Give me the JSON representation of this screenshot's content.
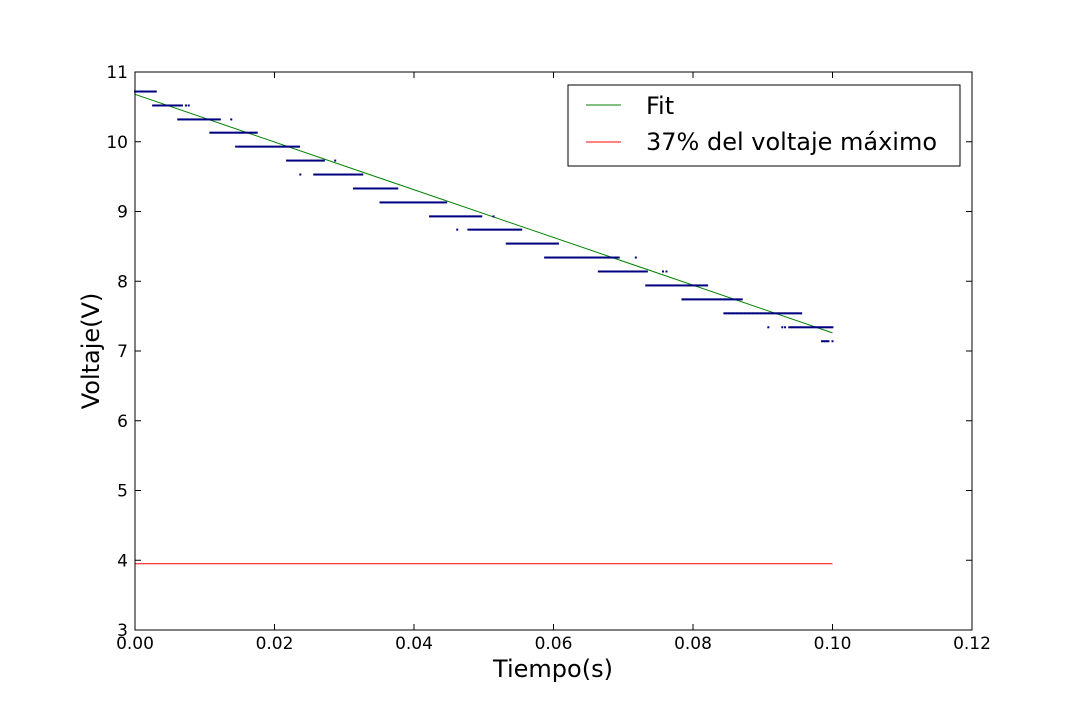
{
  "chart_data": {
    "type": "scatter",
    "title": "",
    "xlabel": "Tiempo(s)",
    "ylabel": "Voltaje(V)",
    "xlim": [
      0.0,
      0.12
    ],
    "ylim": [
      3,
      11
    ],
    "xticks": [
      "0.00",
      "0.02",
      "0.04",
      "0.06",
      "0.08",
      "0.10",
      "0.12"
    ],
    "yticks": [
      "3",
      "4",
      "5",
      "6",
      "7",
      "8",
      "9",
      "10",
      "11"
    ],
    "grid": false,
    "legend_position": "top-right",
    "legend": [
      "Fit",
      "37% del voltaje máximo"
    ],
    "series": [
      {
        "kind": "line",
        "name": "Fit",
        "color": "#008000",
        "x": [
          0.0,
          0.1
        ],
        "y": [
          10.68,
          7.26
        ]
      },
      {
        "kind": "line",
        "name": "37% del voltaje máximo",
        "color": "#ff0000",
        "x": [
          0.0,
          0.1
        ],
        "y": [
          3.95,
          3.95
        ]
      },
      {
        "kind": "scatter",
        "color": "#000080",
        "note_levels": "quantized voltage readings",
        "segments": [
          {
            "y": 10.72,
            "x": [
              0.0,
              0.0032
            ]
          },
          {
            "y": 10.52,
            "x": [
              0.0026,
              0.0068
            ]
          },
          {
            "y": 10.32,
            "x": [
              0.0062,
              0.0122
            ]
          },
          {
            "y": 10.13,
            "x": [
              0.0108,
              0.0175
            ]
          },
          {
            "y": 9.93,
            "x": [
              0.0148,
              0.0236
            ]
          },
          {
            "y": 9.73,
            "x": [
              0.0218,
              0.0273
            ]
          },
          {
            "y": 9.53,
            "x": [
              0.0257,
              0.0327
            ]
          },
          {
            "y": 9.33,
            "x": [
              0.0314,
              0.0378
            ]
          },
          {
            "y": 9.13,
            "x": [
              0.0352,
              0.0448
            ]
          },
          {
            "y": 8.93,
            "x": [
              0.0423,
              0.0497
            ]
          },
          {
            "y": 8.74,
            "x": [
              0.0478,
              0.0555
            ]
          },
          {
            "y": 8.54,
            "x": [
              0.0533,
              0.0608
            ]
          },
          {
            "y": 8.34,
            "x": [
              0.0588,
              0.0695
            ]
          },
          {
            "y": 8.14,
            "x": [
              0.0665,
              0.0735
            ]
          },
          {
            "y": 7.94,
            "x": [
              0.0733,
              0.0822
            ]
          },
          {
            "y": 7.74,
            "x": [
              0.0785,
              0.0872
            ]
          },
          {
            "y": 7.54,
            "x": [
              0.0845,
              0.0957
            ]
          },
          {
            "y": 7.34,
            "x": [
              0.0938,
              0.1
            ]
          },
          {
            "y": 7.14,
            "x": [
              0.0985,
              0.0995
            ]
          }
        ],
        "scattered": [
          {
            "x": 0.0073,
            "y": 10.52
          },
          {
            "x": 0.0077,
            "y": 10.52
          },
          {
            "x": 0.0138,
            "y": 10.32
          },
          {
            "x": 0.0145,
            "y": 9.93
          },
          {
            "x": 0.0237,
            "y": 9.53
          },
          {
            "x": 0.0287,
            "y": 9.73
          },
          {
            "x": 0.0462,
            "y": 8.74
          },
          {
            "x": 0.0514,
            "y": 8.93
          },
          {
            "x": 0.0718,
            "y": 8.34
          },
          {
            "x": 0.0757,
            "y": 8.14
          },
          {
            "x": 0.0762,
            "y": 8.14
          },
          {
            "x": 0.0785,
            "y": 7.74
          },
          {
            "x": 0.0908,
            "y": 7.34
          },
          {
            "x": 0.0928,
            "y": 7.34
          },
          {
            "x": 0.0932,
            "y": 7.34
          },
          {
            "x": 0.1,
            "y": 7.14
          }
        ]
      }
    ]
  }
}
